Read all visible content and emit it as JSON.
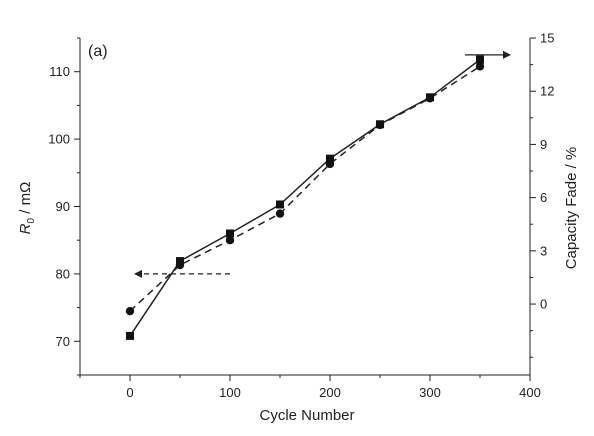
{
  "chart_data": {
    "type": "line",
    "panel_label": "(a)",
    "xlabel": "Cycle Number",
    "ylabel_left": {
      "main": "R",
      "subscript": "0",
      "rest": " / mΩ"
    },
    "ylabel_right": "Capacity Fade / %",
    "xlim": [
      -50,
      400
    ],
    "ylim_left": [
      65,
      115
    ],
    "ylim_right": [
      -4,
      15
    ],
    "x_ticks": [
      0,
      100,
      200,
      300,
      400
    ],
    "y_left_ticks": [
      70,
      80,
      90,
      100,
      110
    ],
    "y_right_ticks": [
      0,
      3,
      6,
      9,
      12,
      15
    ],
    "series": [
      {
        "axis": "left",
        "marker": "square",
        "line_style": "solid",
        "x": [
          0,
          50,
          100,
          150,
          200,
          250,
          300,
          350
        ],
        "values": [
          70.8,
          81.9,
          86.0,
          90.3,
          97.1,
          102.2,
          106.2,
          111.8
        ]
      },
      {
        "axis": "right",
        "marker": "circle",
        "line_style": "dashed",
        "x": [
          0,
          50,
          100,
          150,
          200,
          250,
          300,
          350
        ],
        "values": [
          -0.4,
          2.2,
          3.6,
          5.1,
          7.9,
          10.1,
          11.6,
          13.4
        ]
      }
    ],
    "annotations": [
      {
        "type": "arrow",
        "points_to": "left-axis",
        "from": [
          100,
          80
        ],
        "to": [
          5,
          80
        ]
      },
      {
        "type": "arrow",
        "points_to": "right-axis",
        "from": [
          335,
          112.5
        ],
        "to": [
          380,
          112.5
        ]
      }
    ],
    "grid": false,
    "legend": "none"
  }
}
